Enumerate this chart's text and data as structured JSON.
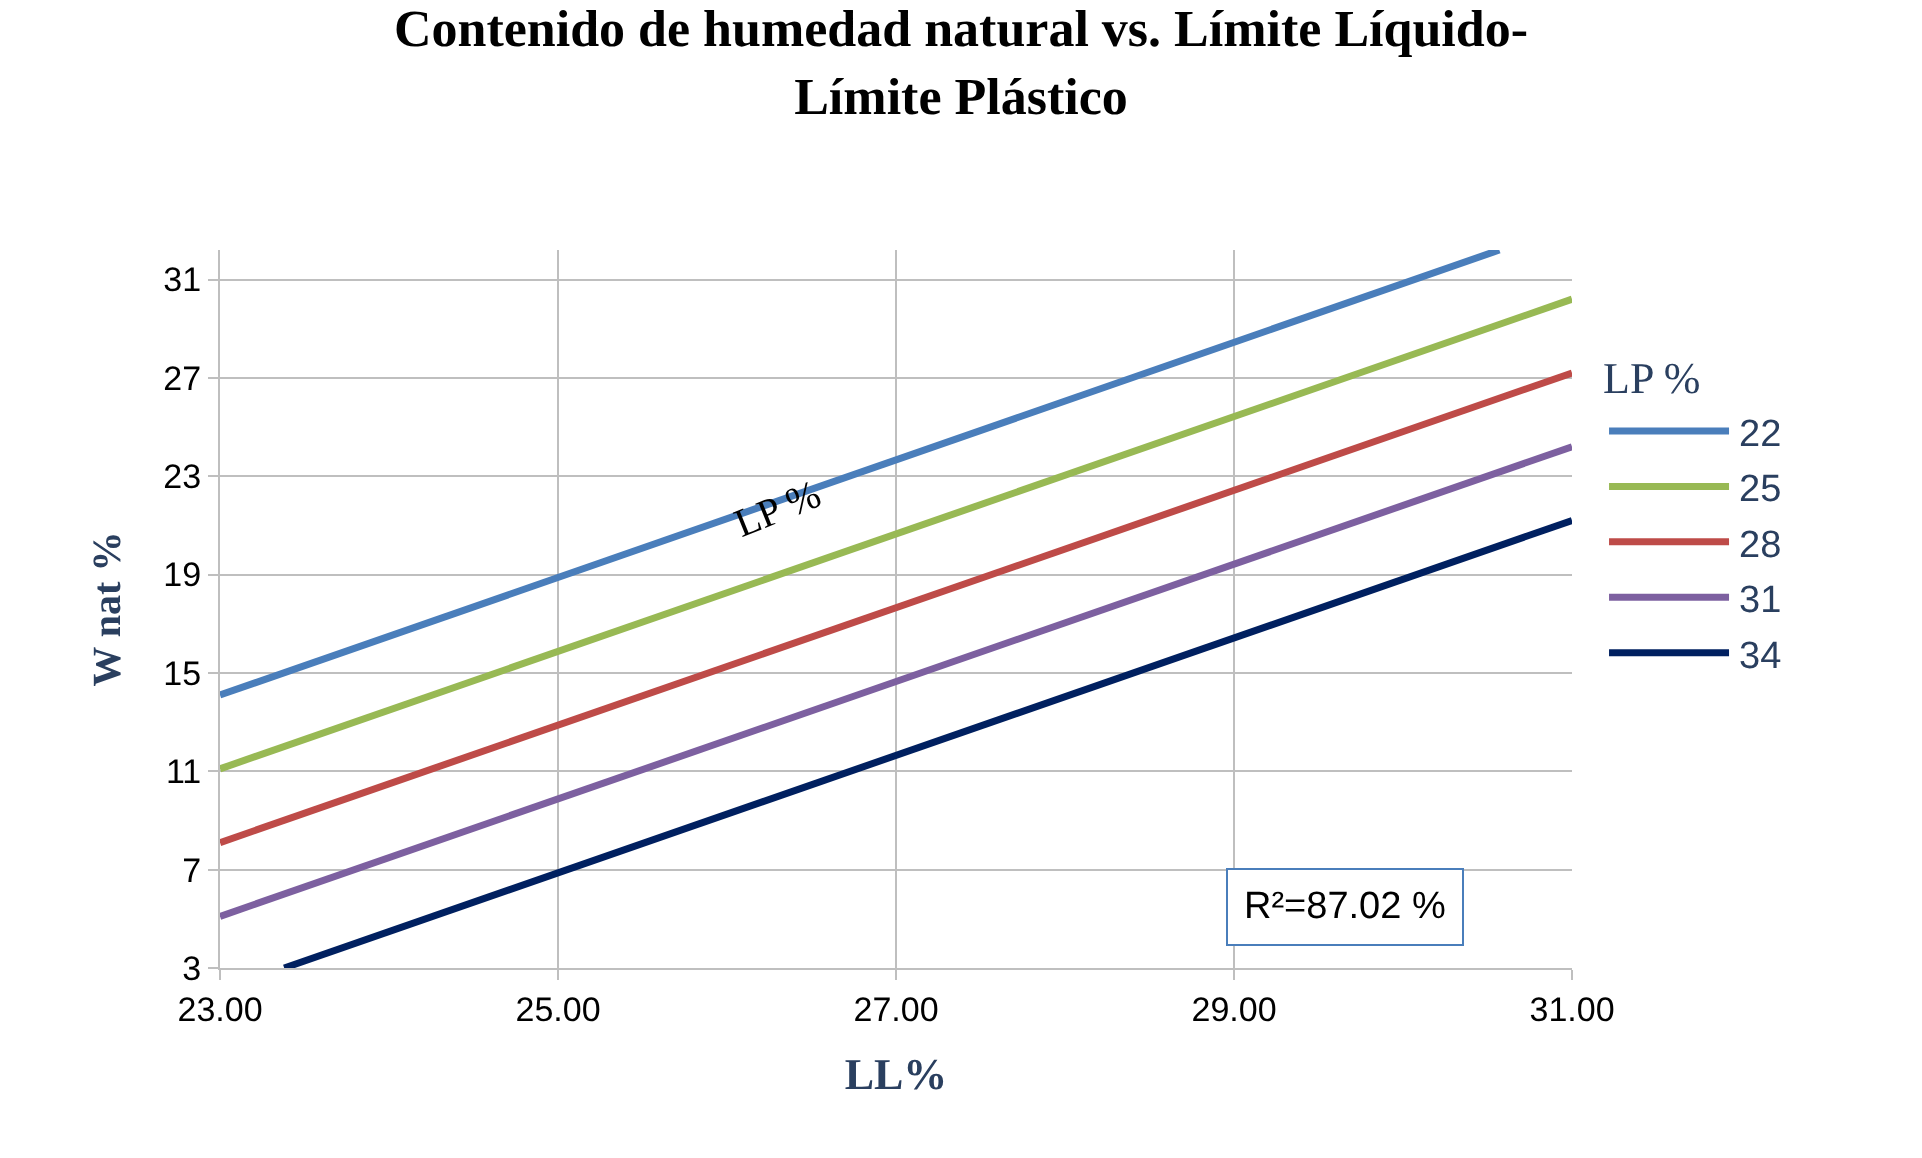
{
  "chart_data": {
    "type": "line",
    "title": "Contenido de humedad natural vs. Límite Líquido-\nLímite Plástico",
    "xlabel": "LL%",
    "ylabel": "W nat %",
    "legend_title": "LP %",
    "series": [
      {
        "name": "22",
        "color": "#4a7ebb",
        "x": [
          23,
          30.57
        ],
        "values": [
          14.1,
          32.2
        ]
      },
      {
        "name": "25",
        "color": "#98b954",
        "x": [
          23,
          31
        ],
        "values": [
          11.1,
          30.2
        ]
      },
      {
        "name": "28",
        "color": "#be4b48",
        "x": [
          23,
          31
        ],
        "values": [
          8.1,
          27.2
        ]
      },
      {
        "name": "31",
        "color": "#7d60a0",
        "x": [
          23,
          31
        ],
        "values": [
          5.1,
          24.2
        ]
      },
      {
        "name": "34",
        "color": "#002060",
        "x": [
          23.38,
          31
        ],
        "values": [
          3,
          21.2
        ]
      }
    ],
    "annotations": [
      {
        "text": "LP %",
        "x": 26.3,
        "y": 21.6
      },
      "R²=87.02 %"
    ],
    "xlim": [
      23,
      31
    ],
    "xticks": [
      {
        "value": 23,
        "label": "23.00"
      },
      {
        "value": 25,
        "label": "25.00"
      },
      {
        "value": 27,
        "label": "27.00"
      },
      {
        "value": 29,
        "label": "29.00"
      },
      {
        "value": 31,
        "label": "31.00"
      }
    ],
    "ylim": [
      3,
      32.2
    ],
    "yticks": [
      3,
      7,
      11,
      15,
      19,
      23,
      27,
      31
    ],
    "grid": true,
    "legend": "right",
    "marker": "none",
    "line_style": "solid"
  }
}
